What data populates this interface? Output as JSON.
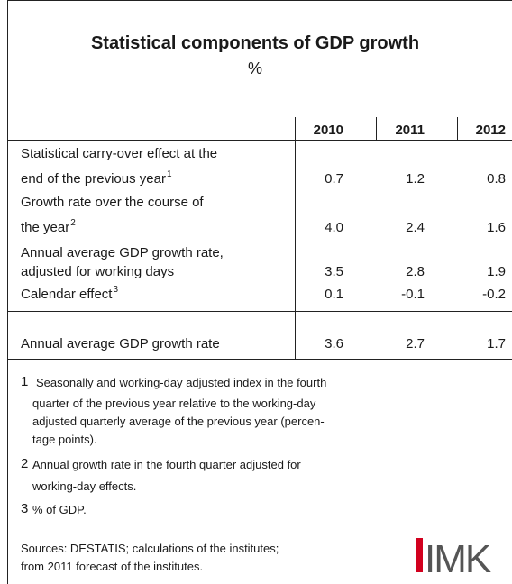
{
  "title": "Statistical components of GDP growth",
  "subtitle": "%",
  "table": {
    "columns": [
      "2010",
      "2011",
      "2012"
    ],
    "rows": [
      {
        "label": [
          "Statistical carry-over effect at the",
          "end of the previous year"
        ],
        "note": "1",
        "values": [
          "0.7",
          "1.2",
          "0.8"
        ]
      },
      {
        "label": [
          "Growth rate over the course of",
          "the year"
        ],
        "note": "2",
        "values": [
          "4.0",
          "2.4",
          "1.6"
        ]
      },
      {
        "label": [
          "Annual average GDP growth rate,",
          "adjusted for working days"
        ],
        "values": [
          "3.5",
          "2.8",
          "1.9"
        ]
      },
      {
        "label": [
          "Calendar effect"
        ],
        "note": "3",
        "values": [
          "0.1",
          "-0.1",
          "-0.2"
        ]
      },
      {
        "label": [
          "Annual average GDP growth rate"
        ],
        "values": [
          "3.6",
          "2.7",
          "1.7"
        ]
      }
    ]
  },
  "footnotes": [
    {
      "marker": "1",
      "lines": [
        "Seasonally and working-day adjusted index in the fourth",
        "quarter of the previous year relative to the working-day",
        "adjusted quarterly average of the previous year (percen-",
        "tage points)."
      ]
    },
    {
      "marker": "2",
      "lines": [
        "Annual growth rate in the fourth quarter adjusted for",
        "working-day effects."
      ]
    },
    {
      "marker": "3",
      "lines": [
        "% of GDP."
      ]
    }
  ],
  "sources": [
    "Sources: DESTATIS; calculations of the institutes;",
    "from 2011 forecast of the institutes."
  ],
  "logo": "IMK"
}
